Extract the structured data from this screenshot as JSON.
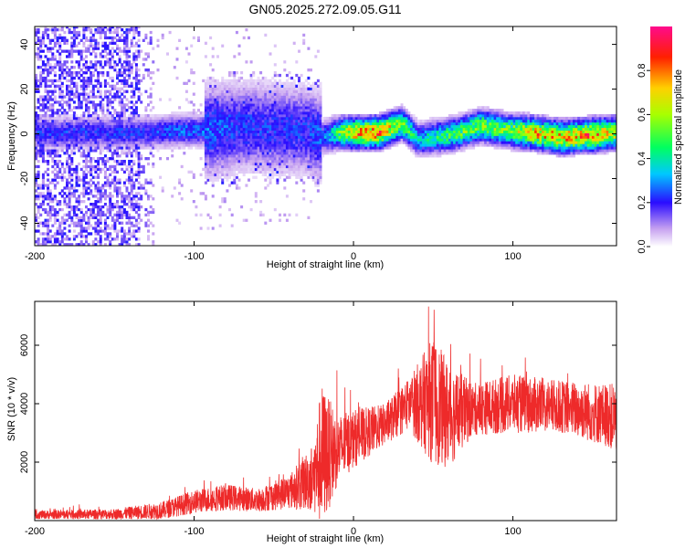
{
  "title": "GN05.2025.272.09.05.G11",
  "chart_data": [
    {
      "type": "heatmap",
      "xlabel": "Height of straight line (km)",
      "ylabel": "Frequency (Hz)",
      "xlim": [
        -200,
        165
      ],
      "ylim": [
        -50,
        48
      ],
      "xticks": [
        -200,
        -100,
        0,
        100
      ],
      "yticks": [
        -40,
        -20,
        0,
        20,
        40
      ],
      "colorbar": {
        "label": "Normalized spectral amplitude",
        "range": [
          0,
          1
        ],
        "ticks": [
          "0.0",
          "0.2",
          "0.4",
          "0.6",
          "0.8"
        ],
        "tick_values": [
          0,
          0.2,
          0.4,
          0.6,
          0.8
        ]
      },
      "ridge": [
        {
          "x": -130,
          "f": 0,
          "amp": 0.25
        },
        {
          "x": -110,
          "f": 1,
          "amp": 0.3
        },
        {
          "x": -90,
          "f": 1,
          "amp": 0.3
        },
        {
          "x": -70,
          "f": 3,
          "amp": 0.25
        },
        {
          "x": -50,
          "f": 2,
          "amp": 0.25
        },
        {
          "x": -30,
          "f": 1,
          "amp": 0.25
        },
        {
          "x": -20,
          "f": -2,
          "amp": 0.3
        },
        {
          "x": -10,
          "f": 0,
          "amp": 0.55
        },
        {
          "x": 0,
          "f": 0,
          "amp": 0.85
        },
        {
          "x": 15,
          "f": 0,
          "amp": 0.9
        },
        {
          "x": 30,
          "f": 4,
          "amp": 0.6
        },
        {
          "x": 40,
          "f": -3,
          "amp": 0.4
        },
        {
          "x": 60,
          "f": -1,
          "amp": 0.55
        },
        {
          "x": 80,
          "f": 3,
          "amp": 0.65
        },
        {
          "x": 95,
          "f": 1,
          "amp": 0.6
        },
        {
          "x": 110,
          "f": 0,
          "amp": 0.8
        },
        {
          "x": 130,
          "f": -2,
          "amp": 0.85
        },
        {
          "x": 150,
          "f": -1,
          "amp": 0.9
        },
        {
          "x": 165,
          "f": 0,
          "amp": 0.7
        }
      ]
    },
    {
      "type": "line",
      "xlabel": "Height of straight line (km)",
      "ylabel": "SNR (10 * v/v)",
      "xlim": [
        -200,
        165
      ],
      "ylim": [
        0,
        7500
      ],
      "xticks": [
        -200,
        -100,
        0,
        100
      ],
      "yticks": [
        2000,
        4000,
        6000
      ],
      "series": [
        {
          "name": "SNR",
          "color": "#ee2a2a",
          "envelope": [
            {
              "x": -200,
              "mean": 200,
              "amp": 150
            },
            {
              "x": -150,
              "mean": 220,
              "amp": 180
            },
            {
              "x": -120,
              "mean": 350,
              "amp": 300
            },
            {
              "x": -100,
              "mean": 650,
              "amp": 400
            },
            {
              "x": -80,
              "mean": 800,
              "amp": 450
            },
            {
              "x": -60,
              "mean": 700,
              "amp": 400
            },
            {
              "x": -40,
              "mean": 1000,
              "amp": 600
            },
            {
              "x": -25,
              "mean": 1500,
              "amp": 1200
            },
            {
              "x": -20,
              "mean": 2200,
              "amp": 2500
            },
            {
              "x": -10,
              "mean": 2400,
              "amp": 1200
            },
            {
              "x": 0,
              "mean": 2800,
              "amp": 1000
            },
            {
              "x": 20,
              "mean": 3300,
              "amp": 700
            },
            {
              "x": 35,
              "mean": 4000,
              "amp": 900
            },
            {
              "x": 50,
              "mean": 4100,
              "amp": 2200
            },
            {
              "x": 60,
              "mean": 3600,
              "amp": 1800
            },
            {
              "x": 75,
              "mean": 3800,
              "amp": 900
            },
            {
              "x": 100,
              "mean": 4000,
              "amp": 1000
            },
            {
              "x": 130,
              "mean": 3900,
              "amp": 900
            },
            {
              "x": 160,
              "mean": 3600,
              "amp": 1100
            },
            {
              "x": 165,
              "mean": 3500,
              "amp": 1200
            }
          ]
        }
      ]
    }
  ]
}
